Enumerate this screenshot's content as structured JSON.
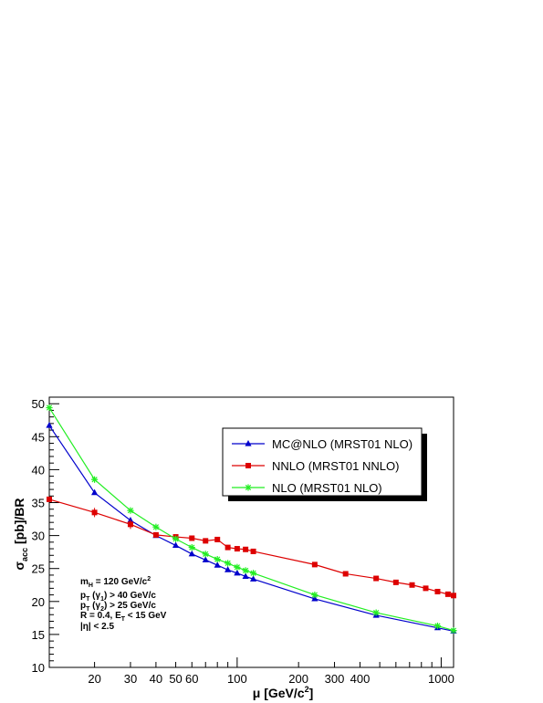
{
  "chart_data": {
    "type": "line",
    "xlabel": "μ [GeV/c²]",
    "ylabel": "σacc [pb]/BR",
    "x_scale": "log",
    "xlim": [
      12,
      1150
    ],
    "ylim": [
      10,
      51
    ],
    "x_ticks": [
      20,
      30,
      40,
      50,
      60,
      100,
      200,
      300,
      400,
      1000
    ],
    "x_tick_labels": [
      "20",
      "30",
      "40",
      "50",
      "60",
      "100",
      "200",
      "300",
      "400",
      "1000"
    ],
    "y_ticks": [
      10,
      15,
      20,
      25,
      30,
      35,
      40,
      45,
      50
    ],
    "y_tick_labels": [
      "10",
      "15",
      "20",
      "25",
      "30",
      "35",
      "40",
      "45",
      "50"
    ],
    "legend": {
      "position": "top-right",
      "entries": [
        "MC@NLO (MRST01 NLO)",
        "NNLO (MRST01 NNLO)",
        "NLO (MRST01 NLO)"
      ]
    },
    "series": [
      {
        "name": "MC@NLO (MRST01 NLO)",
        "color": "#0000cc",
        "marker": "triangle",
        "x": [
          12,
          20,
          30,
          40,
          50,
          60,
          70,
          80,
          90,
          100,
          110,
          120,
          240,
          480,
          960,
          1150
        ],
        "y": [
          46.7,
          36.5,
          32.3,
          30.0,
          28.5,
          27.2,
          26.3,
          25.5,
          24.8,
          24.3,
          23.8,
          23.4,
          20.4,
          17.9,
          16.0,
          15.5
        ]
      },
      {
        "name": "NNLO (MRST01 NNLO)",
        "color": "#dd0000",
        "marker": "square",
        "x": [
          12,
          20,
          30,
          40,
          50,
          60,
          70,
          80,
          90,
          100,
          110,
          120,
          240,
          340,
          480,
          600,
          720,
          840,
          960,
          1080,
          1150
        ],
        "y": [
          35.5,
          33.5,
          31.7,
          30.1,
          29.8,
          29.6,
          29.2,
          29.4,
          28.2,
          28.0,
          27.9,
          27.6,
          25.6,
          24.2,
          23.5,
          22.9,
          22.5,
          22.0,
          21.5,
          21.1,
          20.9
        ]
      },
      {
        "name": "NLO (MRST01 NLO)",
        "color": "#22ee22",
        "marker": "star",
        "x": [
          12,
          20,
          30,
          40,
          50,
          60,
          70,
          80,
          90,
          100,
          110,
          120,
          240,
          480,
          960,
          1150
        ],
        "y": [
          49.4,
          38.5,
          33.8,
          31.3,
          29.5,
          28.2,
          27.2,
          26.4,
          25.8,
          25.2,
          24.7,
          24.3,
          21.0,
          18.3,
          16.3,
          15.6
        ]
      }
    ],
    "annotations": [
      "m_H = 120 GeV/c²",
      "p_T (γ1) > 40 GeV/c",
      "p_T (γ2) > 25 GeV/c",
      "R = 0.4, E_T < 15 GeV",
      "|η| < 2.5"
    ]
  }
}
